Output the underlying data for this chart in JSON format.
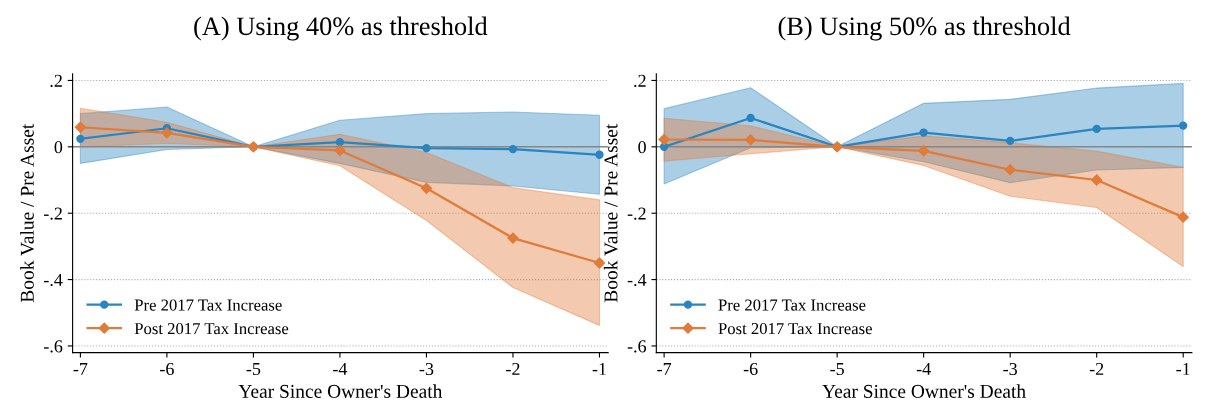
{
  "chart_data": [
    {
      "type": "line",
      "title": "(A) Using 40% as threshold",
      "xlabel": "Year Since Owner's Death",
      "ylabel": "Book Value / Pre Asset",
      "x": [
        -7,
        -6,
        -5,
        -4,
        -3,
        -2,
        -1
      ],
      "xlim": [
        -7.09,
        -0.9
      ],
      "xticks": [
        -7,
        -6,
        -5,
        -4,
        -3,
        -2,
        -1
      ],
      "ylim": [
        -0.62,
        0.22
      ],
      "yticks": [
        {
          "value": 0.2,
          "label": ".2"
        },
        0,
        {
          "value": -0.2,
          "label": "-.2"
        },
        {
          "value": -0.4,
          "label": "-.4"
        },
        {
          "value": -0.6,
          "label": "-.6"
        }
      ],
      "grid": "y",
      "legend": "bottom left",
      "line_style": "solid",
      "ref_lines": [
        {
          "axis": "y",
          "value": 0,
          "label": null,
          "color": "#888888"
        }
      ],
      "series": [
        {
          "name": "Pre 2017 Tax Increase",
          "color": "#2a84c0",
          "marker": "circle",
          "values": [
            0.024,
            0.056,
            0,
            0.014,
            -0.004,
            -0.007,
            -0.024
          ],
          "upper": [
            0.1,
            0.12,
            0,
            0.08,
            0.1,
            0.105,
            0.095
          ],
          "lower": [
            -0.05,
            -0.008,
            0,
            -0.05,
            -0.107,
            -0.118,
            -0.143
          ]
        },
        {
          "name": "Post 2017 Tax Increase",
          "color": "#e07b39",
          "marker": "diamond",
          "values": [
            0.059,
            0.042,
            0,
            -0.011,
            -0.125,
            -0.275,
            -0.35
          ],
          "upper": [
            0.116,
            0.074,
            0,
            0.038,
            -0.017,
            -0.123,
            -0.16
          ],
          "lower": [
            0.0,
            0.01,
            0,
            -0.057,
            -0.222,
            -0.424,
            -0.538
          ]
        }
      ]
    },
    {
      "type": "line",
      "title": "(B) Using 50% as threshold",
      "xlabel": "Year Since Owner's Death",
      "ylabel": "Book Value / Pre Asset",
      "x": [
        -7,
        -6,
        -5,
        -4,
        -3,
        -2,
        -1
      ],
      "xlim": [
        -7.09,
        -0.9
      ],
      "xticks": [
        -7,
        -6,
        -5,
        -4,
        -3,
        -2,
        -1
      ],
      "ylim": [
        -0.62,
        0.22
      ],
      "yticks": [
        {
          "value": 0.2,
          "label": ".2"
        },
        0,
        {
          "value": -0.2,
          "label": "-.2"
        },
        {
          "value": -0.4,
          "label": "-.4"
        },
        {
          "value": -0.6,
          "label": "-.6"
        }
      ],
      "grid": "y",
      "legend": "bottom left",
      "line_style": "solid",
      "ref_lines": [
        {
          "axis": "y",
          "value": 0,
          "label": null,
          "color": "#888888"
        }
      ],
      "series": [
        {
          "name": "Pre 2017 Tax Increase",
          "color": "#2a84c0",
          "marker": "circle",
          "values": [
            0.0,
            0.087,
            0,
            0.043,
            0.018,
            0.054,
            0.064
          ],
          "upper": [
            0.115,
            0.178,
            0,
            0.131,
            0.143,
            0.177,
            0.191
          ],
          "lower": [
            -0.112,
            -0.003,
            0,
            -0.045,
            -0.108,
            -0.07,
            -0.062
          ]
        },
        {
          "name": "Post 2017 Tax Increase",
          "color": "#e07b39",
          "marker": "diamond",
          "values": [
            0.022,
            0.021,
            0,
            -0.012,
            -0.069,
            -0.1,
            -0.212
          ],
          "upper": [
            0.086,
            0.063,
            0,
            0.033,
            0.012,
            -0.013,
            -0.062
          ],
          "lower": [
            -0.043,
            -0.021,
            0,
            -0.056,
            -0.149,
            -0.183,
            -0.361
          ]
        }
      ]
    }
  ]
}
